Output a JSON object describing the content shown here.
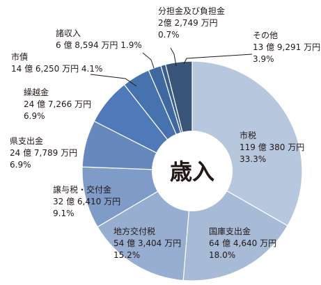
{
  "chart_data": {
    "type": "pie",
    "center_label": "歳入",
    "slices": [
      {
        "name": "市税",
        "amount": "119 億 380 万円",
        "percent": 33.3,
        "percent_text": "33.3%",
        "color": "#b7c7dd"
      },
      {
        "name": "国庫支出金",
        "amount": "64 億 4,640 万円",
        "percent": 18.0,
        "percent_text": "18.0%",
        "color": "#a7bbd6"
      },
      {
        "name": "地方交付税",
        "amount": "54 億 3,404 万円",
        "percent": 15.2,
        "percent_text": "15.2%",
        "color": "#98aed0"
      },
      {
        "name": "譲与税・交付金",
        "amount": "32 億 6,410 万円",
        "percent": 9.1,
        "percent_text": "9.1%",
        "color": "#7f9bc7"
      },
      {
        "name": "県支出金",
        "amount": "24 億 7,789 万円",
        "percent": 6.9,
        "percent_text": "6.9%",
        "color": "#6688bd"
      },
      {
        "name": "繰越金",
        "amount": "24 億 7,266 万円",
        "percent": 6.9,
        "percent_text": "6.9%",
        "color": "#4f79b8"
      },
      {
        "name": "市債",
        "amount": "14 億 6,250 万円",
        "percent": 4.1,
        "percent_text": "4.1%",
        "color": "#4672ae"
      },
      {
        "name": "諸収入",
        "amount": "6 億 8,594 万円",
        "percent": 1.9,
        "percent_text": "1.9%",
        "color": "#3f67a0"
      },
      {
        "name": "分担金及び負担金",
        "amount": "2億 2,749 万円",
        "percent": 0.7,
        "percent_text": "0.7%",
        "color": "#385d92"
      },
      {
        "name": "その他",
        "amount": "13 億 9,291 万円",
        "percent": 3.9,
        "percent_text": "3.9%",
        "color": "#3a557a"
      }
    ],
    "colors": {
      "label_text": "#231815",
      "leader_line": "#231815",
      "slice_border": "#ffffff",
      "hole": "#ffffff"
    }
  }
}
